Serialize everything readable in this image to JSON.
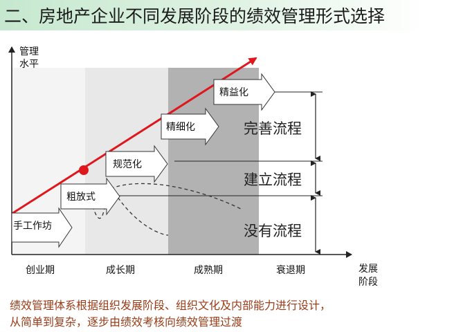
{
  "title": "二、房地产企业不同发展阶段的绩效管理形式选择",
  "y_axis_label": [
    "管理",
    "水平"
  ],
  "x_axis_label": [
    "发展",
    "阶段"
  ],
  "stages": [
    "创业期",
    "成长期",
    "成熟期",
    "衰退期"
  ],
  "management_forms": [
    "手工作坊",
    "粗放式",
    "规范化",
    "精细化",
    "精益化"
  ],
  "process_levels": [
    "完善流程",
    "建立流程",
    "没有流程"
  ],
  "note_lines": [
    "绩效管理体系根据组织发展阶段、组织文化及内部能力进行设计，",
    "从简单到复杂，逐步由绩效考核向绩效管理过渡"
  ],
  "colors": {
    "growth_line": "#e0161d",
    "note_text": "#9b3b17",
    "mature_band": "#b3b2b2",
    "title_band": "#c6e8cf"
  }
}
